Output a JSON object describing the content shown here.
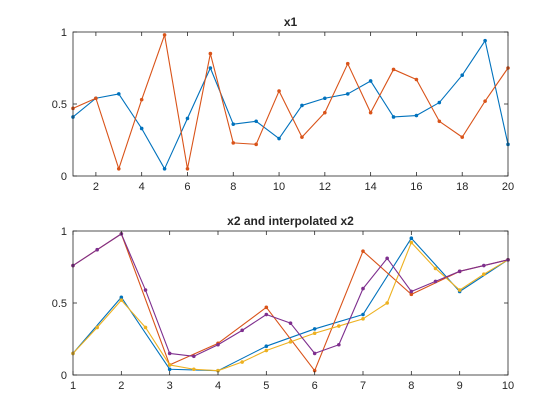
{
  "chart_data": [
    {
      "type": "line",
      "title": "x1",
      "xlabel": "",
      "ylabel": "",
      "xlim": [
        1,
        20
      ],
      "ylim": [
        0,
        1
      ],
      "xticks": [
        2,
        4,
        6,
        8,
        10,
        12,
        14,
        16,
        18,
        20
      ],
      "yticks": [
        0,
        0.5,
        1
      ],
      "xtick_labels": [
        "2",
        "4",
        "6",
        "8",
        "10",
        "12",
        "14",
        "16",
        "18",
        "20"
      ],
      "ytick_labels": [
        "0",
        "0.5",
        "1"
      ],
      "grid": false,
      "legend": "none",
      "series": [
        {
          "color": "#0072BD",
          "x": [
            1,
            2,
            3,
            4,
            5,
            6,
            7,
            8,
            9,
            10,
            11,
            12,
            13,
            14,
            15,
            16,
            17,
            18,
            19,
            20
          ],
          "y": [
            0.41,
            0.54,
            0.57,
            0.33,
            0.05,
            0.4,
            0.75,
            0.36,
            0.38,
            0.26,
            0.49,
            0.54,
            0.57,
            0.66,
            0.41,
            0.42,
            0.51,
            0.7,
            0.94,
            0.22
          ]
        },
        {
          "color": "#D95319",
          "x": [
            1,
            2,
            3,
            4,
            5,
            6,
            7,
            8,
            9,
            10,
            11,
            12,
            13,
            14,
            15,
            16,
            17,
            18,
            19,
            20
          ],
          "y": [
            0.47,
            0.54,
            0.05,
            0.53,
            0.98,
            0.05,
            0.85,
            0.23,
            0.22,
            0.59,
            0.27,
            0.44,
            0.78,
            0.44,
            0.74,
            0.67,
            0.38,
            0.27,
            0.52,
            0.75
          ]
        }
      ]
    },
    {
      "type": "line",
      "title": "x2 and interpolated x2",
      "xlabel": "",
      "ylabel": "",
      "xlim": [
        1,
        10
      ],
      "ylim": [
        0,
        1
      ],
      "xticks": [
        1,
        2,
        3,
        4,
        5,
        6,
        7,
        8,
        9,
        10
      ],
      "yticks": [
        0,
        0.5,
        1
      ],
      "xtick_labels": [
        "1",
        "2",
        "3",
        "4",
        "5",
        "6",
        "7",
        "8",
        "9",
        "10"
      ],
      "ytick_labels": [
        "0",
        "0.5",
        "1"
      ],
      "grid": false,
      "legend": "none",
      "series": [
        {
          "color": "#0072BD",
          "x": [
            1,
            2,
            3,
            4,
            5,
            6,
            7,
            8,
            9,
            10
          ],
          "y": [
            0.15,
            0.54,
            0.04,
            0.03,
            0.2,
            0.32,
            0.42,
            0.95,
            0.58,
            0.8
          ]
        },
        {
          "color": "#D95319",
          "x": [
            1,
            2,
            3,
            4,
            5,
            6,
            7,
            8,
            9,
            10
          ],
          "y": [
            0.76,
            0.98,
            0.07,
            0.22,
            0.47,
            0.03,
            0.86,
            0.56,
            0.72,
            0.8
          ]
        },
        {
          "color": "#EDB120",
          "x": [
            1,
            1.5,
            2,
            2.5,
            3,
            3.5,
            4,
            4.5,
            5,
            5.5,
            6,
            6.5,
            7,
            7.5,
            8,
            8.5,
            9,
            9.5,
            10
          ],
          "y": [
            0.15,
            0.33,
            0.52,
            0.33,
            0.07,
            0.04,
            0.03,
            0.09,
            0.17,
            0.23,
            0.29,
            0.34,
            0.39,
            0.5,
            0.92,
            0.74,
            0.59,
            0.7,
            0.8
          ]
        },
        {
          "color": "#7E2F8E",
          "x": [
            1,
            1.5,
            2,
            2.5,
            3,
            3.5,
            4,
            4.5,
            5,
            5.5,
            6,
            6.5,
            7,
            7.5,
            8,
            8.5,
            9,
            9.5,
            10
          ],
          "y": [
            0.76,
            0.87,
            0.98,
            0.59,
            0.15,
            0.13,
            0.21,
            0.31,
            0.42,
            0.36,
            0.15,
            0.21,
            0.6,
            0.81,
            0.58,
            0.65,
            0.72,
            0.76,
            0.8
          ]
        }
      ]
    }
  ]
}
